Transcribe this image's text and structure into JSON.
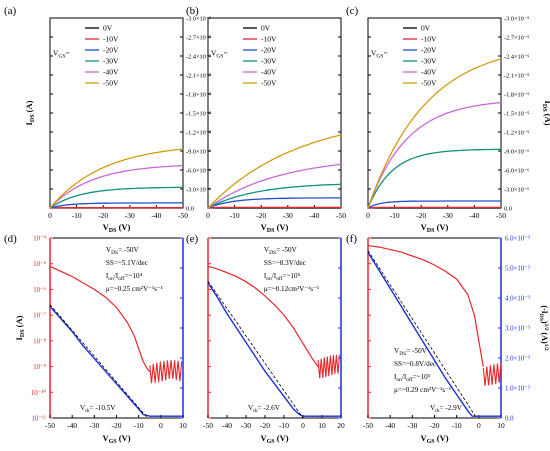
{
  "chart_data": [
    {
      "panel": "(a)",
      "type": "line",
      "xlabel": "V_DS (V)",
      "ylabel_left": "I_DS (A)",
      "xlim": [
        0,
        -50
      ],
      "ylim": [
        0,
        3e-05
      ],
      "xticks": [
        "0",
        "-10",
        "-20",
        "-30",
        "-40",
        "-50"
      ],
      "yticks_right": [
        "0.0",
        "-3.0×10⁻⁶",
        "-6.0×10⁻⁶",
        "-9.0×10⁻⁶",
        "-1.2×10⁻⁵",
        "-1.5×10⁻⁵",
        "-1.8×10⁻⁵",
        "-2.1×10⁻⁵",
        "-2.4×10⁻⁵",
        "-2.7×10⁻⁵",
        "-3.0×10⁻⁵"
      ],
      "legend_title": "V_GS=",
      "series": [
        {
          "name": "0V",
          "color": "#000000",
          "isat": 0.0,
          "vsat": 5
        },
        {
          "name": "-10V",
          "color": "#e8262b",
          "isat": 5e-08,
          "vsat": 5
        },
        {
          "name": "-20V",
          "color": "#1f4fd1",
          "isat": 8e-07,
          "vsat": 15
        },
        {
          "name": "-30V",
          "color": "#11917a",
          "isat": 3.3e-06,
          "vsat": 25
        },
        {
          "name": "-40V",
          "color": "#c86bd6",
          "isat": 7e-06,
          "vsat": 35
        },
        {
          "name": "-50V",
          "color": "#d69a12",
          "isat": 1.02e-05,
          "vsat": 45
        }
      ]
    },
    {
      "panel": "(b)",
      "type": "line",
      "xlabel": "V_DS (V)",
      "xlim": [
        0,
        -50
      ],
      "ylim": [
        0,
        3e-05
      ],
      "xticks": [
        "0",
        "-10",
        "-20",
        "-30",
        "-40",
        "-50"
      ],
      "legend_title": "V_GS=",
      "series": [
        {
          "name": "0V",
          "color": "#000000",
          "isat": 0.0,
          "vsat": 5
        },
        {
          "name": "-10V",
          "color": "#e8262b",
          "isat": 1e-07,
          "vsat": 5
        },
        {
          "name": "-20V",
          "color": "#1f4fd1",
          "isat": 1.6e-06,
          "vsat": 20
        },
        {
          "name": "-30V",
          "color": "#11917a",
          "isat": 4e-06,
          "vsat": 40
        },
        {
          "name": "-40V",
          "color": "#c86bd6",
          "isat": 8.2e-06,
          "vsat": 60
        },
        {
          "name": "-50V",
          "color": "#d69a12",
          "isat": 1.5e-05,
          "vsat": 75
        }
      ]
    },
    {
      "panel": "(c)",
      "type": "line",
      "xlabel": "V_DS (V)",
      "ylabel_right": "I_DS (A)",
      "xlim": [
        0,
        -50
      ],
      "ylim": [
        0,
        3e-05
      ],
      "xticks": [
        "0",
        "-10",
        "-20",
        "-30",
        "-40",
        "-50"
      ],
      "yticks_right": [
        "0.0",
        "-3.0×10⁻⁶",
        "-6.0×10⁻⁶",
        "-9.0×10⁻⁶",
        "-1.2×10⁻⁵",
        "-1.5×10⁻⁵",
        "-1.8×10⁻⁵",
        "-2.1×10⁻⁵",
        "-2.4×10⁻⁵",
        "-2.7×10⁻⁵",
        "-3.0×10⁻⁵"
      ],
      "legend_title": "V_GS=",
      "series": [
        {
          "name": "0V",
          "color": "#000000",
          "isat": 0.0,
          "vsat": 5
        },
        {
          "name": "-10V",
          "color": "#e8262b",
          "isat": 1e-07,
          "vsat": 5
        },
        {
          "name": "-20V",
          "color": "#1f4fd1",
          "isat": 1.1e-06,
          "vsat": 10
        },
        {
          "name": "-30V",
          "color": "#11917a",
          "isat": 9.3e-06,
          "vsat": 20
        },
        {
          "name": "-40V",
          "color": "#c86bd6",
          "isat": 1.72e-05,
          "vsat": 32
        },
        {
          "name": "-50V",
          "color": "#d69a12",
          "isat": 2.62e-05,
          "vsat": 48
        }
      ]
    },
    {
      "panel": "(d)",
      "type": "line",
      "xlabel": "V_GS (V)",
      "ylabel_left": "I_DS (A)",
      "xlim": [
        -50,
        10
      ],
      "xticks": [
        "-50",
        "-40",
        "-30",
        "-20",
        "-10",
        "0",
        "10"
      ],
      "yticks_left": [
        "10⁻¹¹",
        "10⁻¹⁰",
        "10⁻⁹",
        "10⁻⁸",
        "10⁻⁷",
        "10⁻⁶",
        "10⁻⁵",
        "10⁻⁴"
      ],
      "ylim_log": [
        -11,
        -4
      ],
      "annotations": [
        "V_DS= -50V",
        "SS=~5.1V/dec",
        "I_on/I_off=~10⁴",
        "μ=~0.25 cm²V⁻¹s⁻¹"
      ],
      "vth_label": "V_th= -10.5V",
      "transfer_red": {
        "x": [
          -50,
          -45,
          -40,
          -35,
          -30,
          -25,
          -20,
          -15,
          -12,
          -10,
          -8,
          -6,
          -5
        ],
        "log_y": [
          -5.1,
          -5.3,
          -5.5,
          -5.75,
          -6.0,
          -6.3,
          -6.7,
          -7.3,
          -7.8,
          -8.3,
          -8.8,
          -9.1,
          -9.2
        ],
        "noise_from_x": -5,
        "noise_to_x": 10,
        "noise_center_log_y": -9.2
      },
      "transfer_blue": {
        "x": [
          -50,
          -45,
          -40,
          -35,
          -30,
          -25,
          -20,
          -15,
          -10,
          -8,
          -5,
          0,
          10
        ],
        "y_norm": [
          0.62,
          0.55,
          0.48,
          0.4,
          0.33,
          0.26,
          0.19,
          0.12,
          0.05,
          0.02,
          0.01,
          0.01,
          0.01
        ]
      }
    },
    {
      "panel": "(e)",
      "type": "line",
      "xlabel": "V_GS (V)",
      "xlim": [
        -50,
        20
      ],
      "xticks": [
        "-50",
        "-40",
        "-30",
        "-20",
        "-10",
        "0",
        "10",
        "20"
      ],
      "ylim_log": [
        -11,
        -4
      ],
      "annotations": [
        "V_DS= -50V",
        "SS=~8.3V/dec",
        "I_on/I_off=~10⁵",
        "μ=~0.12cm²V⁻¹s⁻¹"
      ],
      "vth_label": "V_th= -2.6V",
      "transfer_red": {
        "x": [
          -50,
          -45,
          -40,
          -35,
          -30,
          -25,
          -20,
          -15,
          -10,
          -5,
          0,
          5,
          8
        ],
        "log_y": [
          -5.1,
          -5.2,
          -5.35,
          -5.5,
          -5.7,
          -5.95,
          -6.25,
          -6.6,
          -7.0,
          -7.5,
          -8.1,
          -8.7,
          -9.0
        ],
        "noise_from_x": 8,
        "noise_to_x": 20,
        "noise_center_log_y": -9.0
      },
      "transfer_blue": {
        "x": [
          -50,
          -45,
          -40,
          -35,
          -30,
          -25,
          -20,
          -15,
          -10,
          -5,
          -2,
          0,
          20
        ],
        "y_norm": [
          0.75,
          0.67,
          0.58,
          0.5,
          0.42,
          0.34,
          0.26,
          0.19,
          0.12,
          0.05,
          0.02,
          0.01,
          0.01
        ]
      }
    },
    {
      "panel": "(f)",
      "type": "line",
      "xlabel": "V_GS (V)",
      "ylabel_right": "(-I_DS)^1/2 (A)^1/2",
      "xlim": [
        -50,
        10
      ],
      "xticks": [
        "-50",
        "-40",
        "-30",
        "-20",
        "-10",
        "0",
        "10"
      ],
      "yticks_right": [
        "0.0",
        "1.0×10⁻³",
        "2.0×10⁻³",
        "3.0×10⁻³",
        "4.0×10⁻³",
        "5.0×10⁻³",
        "6.0×10⁻³"
      ],
      "ylim_log": [
        -11,
        -4
      ],
      "annotations": [
        "V_DS= -50V",
        "SS=~0.8V/dec",
        "I_on/I_off=~10⁵",
        "μ=~0.29 cm²V⁻¹s⁻¹"
      ],
      "vth_label": "V_th= -2.9V",
      "transfer_red": {
        "x": [
          -50,
          -45,
          -40,
          -35,
          -30,
          -25,
          -20,
          -15,
          -10,
          -5,
          -2,
          0,
          2
        ],
        "log_y": [
          -4.3,
          -4.35,
          -4.45,
          -4.55,
          -4.7,
          -4.85,
          -5.05,
          -5.3,
          -5.6,
          -6.2,
          -7.0,
          -8.0,
          -9.0
        ],
        "noise_from_x": 2,
        "noise_to_x": 10,
        "noise_center_log_y": -9.3
      },
      "transfer_blue": {
        "x": [
          -50,
          -45,
          -40,
          -35,
          -30,
          -25,
          -20,
          -15,
          -10,
          -5,
          -3,
          0,
          10
        ],
        "y_norm": [
          0.92,
          0.82,
          0.72,
          0.62,
          0.52,
          0.42,
          0.32,
          0.22,
          0.13,
          0.04,
          0.01,
          0.01,
          0.01
        ]
      }
    }
  ]
}
